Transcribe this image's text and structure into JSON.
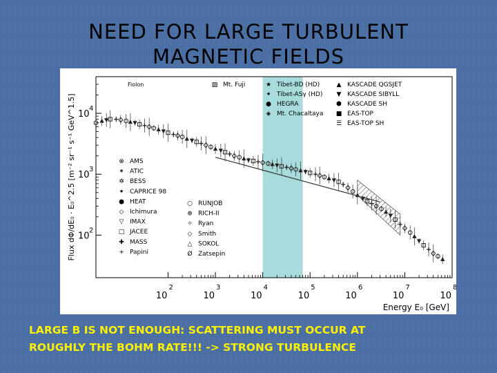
{
  "slide": {
    "title_line1": "NEED FOR LARGE TURBULENT",
    "title_line2": "MAGNETIC FIELDS",
    "caption_line1": "LARGE B IS NOT ENOUGH: SCATTERING MUST OCCUR AT",
    "caption_line2": "ROUGHLY THE BOHM RATE!!! -> STRONG TURBULENCE",
    "background_color": "#4a6fa5",
    "caption_color": "#fff200",
    "highlight_color": "#a8dcdc"
  },
  "chart_data": {
    "type": "scatter",
    "title": "",
    "xlabel": "Energy E₀ [GeV]",
    "ylabel": "Flux dΦ/dE₀ · E₀^2.5 [m⁻² sr⁻¹ s⁻¹ GeV^1.5]",
    "x_scale": "log",
    "y_scale": "log",
    "xlim": [
      3,
      100000000
    ],
    "ylim": [
      20,
      40000
    ],
    "x_ticks": [
      {
        "base": "10",
        "exp": "2",
        "value": 100
      },
      {
        "base": "10",
        "exp": "3",
        "value": 1000
      },
      {
        "base": "10",
        "exp": "4",
        "value": 10000
      },
      {
        "base": "10",
        "exp": "5",
        "value": 100000
      },
      {
        "base": "10",
        "exp": "6",
        "value": 1000000
      },
      {
        "base": "10",
        "exp": "7",
        "value": 10000000
      },
      {
        "base": "10",
        "exp": "8",
        "value": 100000000
      }
    ],
    "y_ticks": [
      {
        "base": "10",
        "exp": "2",
        "value": 100
      },
      {
        "base": "10",
        "exp": "3",
        "value": 1000
      },
      {
        "base": "10",
        "exp": "4",
        "value": 10000
      }
    ],
    "highlight_band": {
      "x_from": 10000,
      "x_to": 70000
    },
    "annotations": [
      "Fiolon"
    ],
    "legend_bottom_left": [
      {
        "symbol": "⊗",
        "label": "AMS"
      },
      {
        "symbol": "✶",
        "label": "ATIC"
      },
      {
        "symbol": "✲",
        "label": "BESS"
      },
      {
        "symbol": "✦",
        "label": "CAPRICE 98"
      },
      {
        "symbol": "●",
        "label": "HEAT"
      },
      {
        "symbol": "◇",
        "label": "Ichimura"
      },
      {
        "symbol": "▽",
        "label": "IMAX"
      },
      {
        "symbol": "□",
        "label": "JACEE"
      },
      {
        "symbol": "✚",
        "label": "MASS"
      },
      {
        "symbol": "+",
        "label": "Papini"
      }
    ],
    "legend_bottom_right": [
      {
        "symbol": "○",
        "label": "RUNJOB"
      },
      {
        "symbol": "⊕",
        "label": "RICH-II"
      },
      {
        "symbol": "✧",
        "label": "Ryan"
      },
      {
        "symbol": "◇",
        "label": "Smith"
      },
      {
        "symbol": "△",
        "label": "SOKOL"
      },
      {
        "symbol": "Ø",
        "label": "Zatsepin"
      }
    ],
    "legend_top_col1": [
      {
        "symbol": "▨",
        "label": "Mt. Fuji"
      }
    ],
    "legend_top_col2": [
      {
        "symbol": "★",
        "label": "Tibet-BD (HD)"
      },
      {
        "symbol": "✦",
        "label": "Tibet-ASγ (HD)"
      },
      {
        "symbol": "●",
        "label": "HEGRA"
      },
      {
        "symbol": "◈",
        "label": "Mt. Chacaltaya"
      }
    ],
    "legend_top_col3": [
      {
        "symbol": "▲",
        "label": "KASCADE QGSJET"
      },
      {
        "symbol": "▼",
        "label": "KASCADE SIBYLL"
      },
      {
        "symbol": "⬢",
        "label": "KASCADE SH"
      },
      {
        "symbol": "■",
        "label": "EAS-TOP"
      },
      {
        "symbol": "☰",
        "label": "EAS-TOP SH"
      }
    ],
    "series": [
      {
        "x": [
          3,
          4,
          5,
          6,
          8,
          10,
          13,
          16,
          20,
          25,
          32,
          40,
          50,
          63,
          80,
          100,
          130,
          160,
          200,
          250,
          320,
          400,
          500,
          630,
          800,
          1000,
          1300,
          1600,
          2000,
          2500,
          3200,
          4000,
          5000,
          6300,
          8000,
          10000,
          13000,
          16000,
          20000,
          25000,
          32000,
          40000,
          50000,
          63000,
          80000,
          100000,
          130000,
          160000,
          200000,
          250000,
          320000,
          400000,
          500000,
          630000,
          800000,
          1000000,
          1300000,
          1600000,
          2000000,
          2500000,
          3200000,
          4000000,
          5000000,
          6300000,
          8000000,
          10000000,
          13000000,
          16000000,
          20000000,
          25000000,
          32000000,
          40000000,
          50000000,
          63000000
        ],
        "y": [
          7000,
          7500,
          7800,
          8000,
          8000,
          7800,
          7500,
          7200,
          7000,
          6600,
          6300,
          6000,
          5700,
          5400,
          5100,
          4800,
          4500,
          4300,
          4100,
          3800,
          3600,
          3400,
          3200,
          3000,
          2800,
          2600,
          2450,
          2300,
          2150,
          2000,
          1900,
          1800,
          1700,
          1650,
          1600,
          1550,
          1500,
          1450,
          1400,
          1350,
          1300,
          1250,
          1200,
          1150,
          1100,
          1050,
          1000,
          950,
          900,
          850,
          800,
          750,
          680,
          600,
          520,
          450,
          400,
          360,
          330,
          300,
          270,
          240,
          210,
          180,
          150,
          130,
          110,
          95,
          80,
          68,
          58,
          50,
          45,
          40
        ]
      }
    ],
    "fit_line": {
      "x": [
        1000,
        3000000
      ],
      "y": [
        1900,
        350
      ]
    },
    "band": {
      "x": [
        1000000,
        8000000
      ],
      "y_low": [
        450,
        100
      ],
      "y_high": [
        800,
        220
      ]
    }
  }
}
